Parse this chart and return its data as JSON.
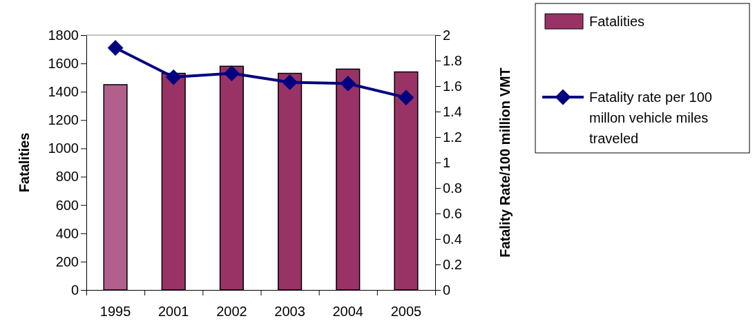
{
  "chart_data": {
    "type": "bar",
    "categories": [
      "1995",
      "2001",
      "2002",
      "2003",
      "2004",
      "2005"
    ],
    "series": [
      {
        "name": "Fatalities",
        "color": "#993366",
        "colors": [
          "#b0608a",
          "#993366",
          "#993366",
          "#993366",
          "#993366",
          "#993366"
        ],
        "values": [
          1450,
          1530,
          1580,
          1530,
          1560,
          1540
        ]
      },
      {
        "name": "Fatality rate per 100 millon vehicle miles traveled",
        "type": "line",
        "axis": "y2",
        "color": "#000080",
        "marker": "diamond",
        "values": [
          1.9,
          1.67,
          1.7,
          1.63,
          1.62,
          1.51
        ]
      }
    ],
    "ylabel": "Fatalities",
    "y2label": "Fatality Rate/100 million VMT",
    "ylim": [
      0,
      1800
    ],
    "yticks": [
      0,
      200,
      400,
      600,
      800,
      1000,
      1200,
      1400,
      1600,
      1800
    ],
    "y2lim": [
      0,
      2
    ],
    "y2ticks": [
      0,
      {
        "value": 0.2,
        "label": "0.2"
      },
      {
        "value": 0.4,
        "label": "0.4"
      },
      {
        "value": 0.6,
        "label": "0.6"
      },
      {
        "value": 0.8,
        "label": "0.8"
      },
      1,
      {
        "value": 1.2,
        "label": "1.2"
      },
      {
        "value": 1.4,
        "label": "1.4"
      },
      {
        "value": 1.6,
        "label": "1.6"
      },
      {
        "value": 1.8,
        "label": "1.8"
      },
      2
    ],
    "legend": "right"
  }
}
